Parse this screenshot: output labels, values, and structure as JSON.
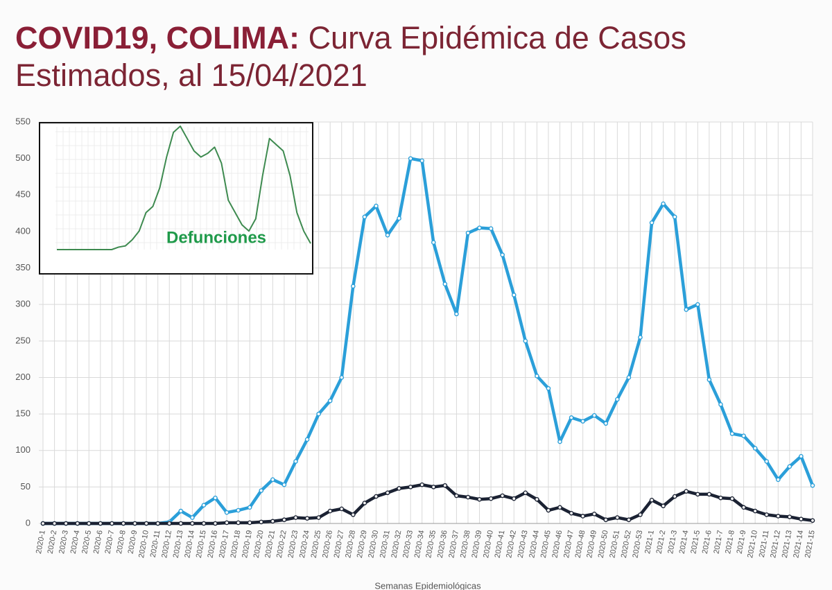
{
  "header": {
    "title_bold": "COVID19, COLIMA:",
    "title_rest": "Curva Epidémica de Casos Estimados, al 15/04/2021"
  },
  "chart_data": [
    {
      "type": "line",
      "x_label": "Semanas Epidemiológicas",
      "categories": [
        "2020-1",
        "2020-2",
        "2020-3",
        "2020-4",
        "2020-5",
        "2020-6",
        "2020-7",
        "2020-8",
        "2020-9",
        "2020-10",
        "2020-11",
        "2020-12",
        "2020-13",
        "2020-14",
        "2020-15",
        "2020-16",
        "2020-17",
        "2020-18",
        "2020-19",
        "2020-20",
        "2020-21",
        "2020-22",
        "2020-23",
        "2020-24",
        "2020-25",
        "2020-26",
        "2020-27",
        "2020-28",
        "2020-29",
        "2020-30",
        "2020-31",
        "2020-32",
        "2020-33",
        "2020-34",
        "2020-35",
        "2020-36",
        "2020-37",
        "2020-38",
        "2020-39",
        "2020-40",
        "2020-41",
        "2020-42",
        "2020-43",
        "2020-44",
        "2020-45",
        "2020-46",
        "2020-47",
        "2020-48",
        "2020-49",
        "2020-50",
        "2020-51",
        "2020-52",
        "2020-53",
        "2021-1",
        "2021-2",
        "2021-3",
        "2021-4",
        "2021-5",
        "2021-6",
        "2021-7",
        "2021-8",
        "2021-9",
        "2021-10",
        "2021-11",
        "2021-12",
        "2021-13",
        "2021-14",
        "2021-15"
      ],
      "series": [
        {
          "color": "#2b9fd9",
          "values": [
            0,
            0,
            0,
            0,
            0,
            0,
            0,
            0,
            0,
            0,
            0,
            2,
            17,
            8,
            25,
            35,
            15,
            18,
            22,
            45,
            60,
            53,
            85,
            115,
            150,
            168,
            200,
            325,
            420,
            435,
            395,
            418,
            500,
            497,
            385,
            328,
            287,
            398,
            405,
            404,
            368,
            313,
            250,
            202,
            185,
            112,
            145,
            140,
            148,
            137,
            170,
            200,
            255,
            412,
            438,
            420,
            293,
            300,
            197,
            163,
            123,
            120,
            103,
            85,
            60,
            78,
            92,
            52
          ]
        },
        {
          "color": "#1b2233",
          "values": [
            0,
            0,
            0,
            0,
            0,
            0,
            0,
            0,
            0,
            0,
            0,
            0,
            0,
            0,
            0,
            0,
            1,
            1,
            1,
            2,
            3,
            5,
            8,
            7,
            8,
            17,
            20,
            12,
            28,
            37,
            42,
            48,
            50,
            53,
            50,
            52,
            38,
            36,
            33,
            34,
            38,
            34,
            42,
            33,
            18,
            22,
            14,
            10,
            13,
            5,
            8,
            5,
            12,
            32,
            24,
            37,
            44,
            40,
            40,
            35,
            34,
            22,
            17,
            12,
            10,
            9,
            6,
            4
          ]
        }
      ],
      "ylim": [
        0,
        550
      ],
      "yticks": [
        0,
        50,
        100,
        150,
        200,
        250,
        300,
        350,
        400,
        450,
        500,
        550
      ],
      "grid": true
    },
    {
      "type": "line",
      "title": "Defunciones",
      "color": "#3d8a4f",
      "values": [
        0,
        0,
        0,
        0,
        0,
        0,
        0,
        0,
        0,
        2,
        3,
        8,
        15,
        30,
        35,
        50,
        75,
        95,
        100,
        90,
        80,
        75,
        78,
        83,
        70,
        40,
        30,
        20,
        15,
        25,
        60,
        90,
        85,
        80,
        60,
        30,
        15,
        5
      ],
      "ylim": [
        0,
        100
      ]
    }
  ]
}
